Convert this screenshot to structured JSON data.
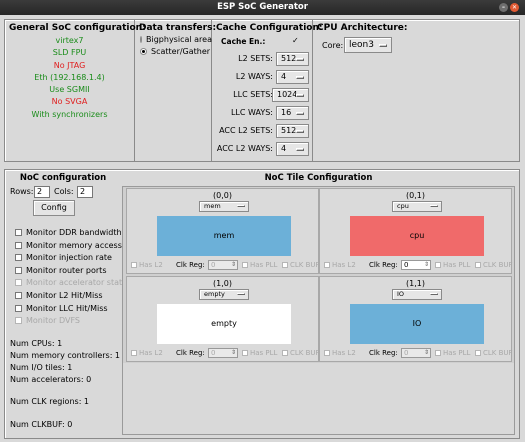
{
  "window": {
    "title": "ESP SoC Generator"
  },
  "soc_config": {
    "title": "General SoC configuration:",
    "items": [
      {
        "text": "virtex7",
        "color": "green"
      },
      {
        "text": "SLD FPU",
        "color": "green"
      },
      {
        "text": "No JTAG",
        "color": "red"
      },
      {
        "text": "Eth (192.168.1.4)",
        "color": "green"
      },
      {
        "text": "Use SGMII",
        "color": "green"
      },
      {
        "text": "No SVGA",
        "color": "red"
      },
      {
        "text": "With synchronizers",
        "color": "green"
      }
    ]
  },
  "data_transfers": {
    "title": "Data transfers:",
    "options": [
      {
        "label": "Bigphysical area",
        "selected": false
      },
      {
        "label": "Scatter/Gather",
        "selected": true
      }
    ]
  },
  "cache_config": {
    "title": "Cache Configuration:",
    "enable_label": "Cache En.:",
    "enable_mark": "✓",
    "rows": [
      {
        "label": "L2 SETS:",
        "value": "512"
      },
      {
        "label": "L2 WAYS:",
        "value": "4"
      },
      {
        "label": "LLC SETS:",
        "value": "1024"
      },
      {
        "label": "LLC WAYS:",
        "value": "16"
      },
      {
        "label": "ACC L2 SETS:",
        "value": "512"
      },
      {
        "label": "ACC L2 WAYS:",
        "value": "4"
      }
    ]
  },
  "cpu_arch": {
    "title": "CPU Architecture:",
    "core_label": "Core:",
    "core_value": "leon3"
  },
  "noc": {
    "title": "NoC configuration",
    "rows_label": "Rows:",
    "rows_value": "2",
    "cols_label": "Cols:",
    "cols_value": "2",
    "config_button": "Config",
    "monitors": [
      {
        "label": "Monitor DDR bandwidth",
        "enabled": true
      },
      {
        "label": "Monitor memory access",
        "enabled": true
      },
      {
        "label": "Monitor injection rate",
        "enabled": true
      },
      {
        "label": "Monitor router ports",
        "enabled": true
      },
      {
        "label": "Monitor accelerator status",
        "enabled": false
      },
      {
        "label": "Monitor L2 Hit/Miss",
        "enabled": true
      },
      {
        "label": "Monitor LLC Hit/Miss",
        "enabled": true
      },
      {
        "label": "Monitor DVFS",
        "enabled": false
      }
    ],
    "stats": {
      "cpus": "Num CPUs: 1",
      "mem": "Num memory controllers: 1",
      "io": "Num I/O tiles: 1",
      "acc": "Num accelerators: 0",
      "clk": "Num CLK regions: 1",
      "clkbuf": "Num CLKBUF: 0"
    }
  },
  "tiles": {
    "title": "NoC Tile Configuration",
    "has_l2": "Has L2",
    "clk_reg": "Clk Reg:",
    "has_pll": "Has PLL",
    "clk_buf": "CLK BUF",
    "items": [
      {
        "coord": "(0,0)",
        "type": "mem",
        "label": "mem",
        "color": "#6cb0d8",
        "clk": "0",
        "l2_enabled": false
      },
      {
        "coord": "(0,1)",
        "type": "cpu",
        "label": "cpu",
        "color": "#f06a6a",
        "clk": "0",
        "l2_enabled": true
      },
      {
        "coord": "(1,0)",
        "type": "empty",
        "label": "empty",
        "color": "#ffffff",
        "clk": "0",
        "l2_enabled": false
      },
      {
        "coord": "(1,1)",
        "type": "IO",
        "label": "IO",
        "color": "#6cb0d8",
        "clk": "0",
        "l2_enabled": false
      }
    ]
  }
}
